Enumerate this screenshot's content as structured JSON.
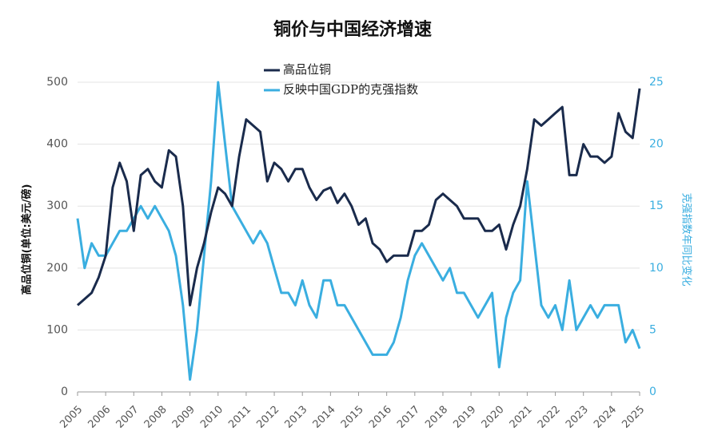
{
  "chart_data": {
    "type": "line",
    "title": "铜价与中国经济增速",
    "y_label": "高品位铜(单位:美元/磅)",
    "y2_label": "克强指数年同比变化",
    "xlim": [
      2005,
      2025
    ],
    "xticks": [
      2005,
      2006,
      2007,
      2008,
      2009,
      2010,
      2011,
      2012,
      2013,
      2014,
      2015,
      2016,
      2017,
      2018,
      2019,
      2020,
      2021,
      2022,
      2023,
      2024,
      2025
    ],
    "ylim": [
      0,
      540
    ],
    "yticks": [
      0,
      100,
      200,
      300,
      400,
      500
    ],
    "y2lim": [
      0,
      27
    ],
    "y2ticks": [
      0,
      5,
      10,
      15,
      20,
      25
    ],
    "grid": true,
    "legend": "top",
    "x": [
      2005,
      2005.25,
      2005.5,
      2005.75,
      2006,
      2006.25,
      2006.5,
      2006.75,
      2007,
      2007.25,
      2007.5,
      2007.75,
      2008,
      2008.25,
      2008.5,
      2008.75,
      2009,
      2009.25,
      2009.5,
      2009.75,
      2010,
      2010.25,
      2010.5,
      2010.75,
      2011,
      2011.25,
      2011.5,
      2011.75,
      2012,
      2012.25,
      2012.5,
      2012.75,
      2013,
      2013.25,
      2013.5,
      2013.75,
      2014,
      2014.25,
      2014.5,
      2014.75,
      2015,
      2015.25,
      2015.5,
      2015.75,
      2016,
      2016.25,
      2016.5,
      2016.75,
      2017,
      2017.25,
      2017.5,
      2017.75,
      2018,
      2018.25,
      2018.5,
      2018.75,
      2019,
      2019.25,
      2019.5,
      2019.75,
      2020,
      2020.25,
      2020.5,
      2020.75,
      2021,
      2021.25,
      2021.5,
      2021.75,
      2022,
      2022.25,
      2022.5,
      2022.75,
      2023,
      2023.25,
      2023.5,
      2023.75,
      2024,
      2024.25,
      2024.5,
      2024.75,
      2025
    ],
    "series": [
      {
        "name": "高品位铜",
        "color": "#1a2b4c",
        "values": [
          140,
          150,
          160,
          185,
          220,
          330,
          370,
          340,
          260,
          350,
          360,
          340,
          330,
          390,
          380,
          300,
          140,
          200,
          240,
          290,
          330,
          320,
          300,
          380,
          440,
          430,
          420,
          340,
          370,
          360,
          340,
          360,
          360,
          330,
          310,
          325,
          330,
          305,
          320,
          300,
          270,
          280,
          240,
          230,
          210,
          220,
          220,
          220,
          260,
          260,
          270,
          310,
          320,
          310,
          300,
          280,
          280,
          280,
          260,
          260,
          270,
          230,
          270,
          300,
          360,
          440,
          430,
          440,
          450,
          460,
          350,
          350,
          400,
          380,
          380,
          370,
          380,
          450,
          420,
          410,
          490
        ]
      },
      {
        "name": "反映中国GDP的克强指数",
        "color": "#3aaee0",
        "axis": "y2",
        "values": [
          14,
          10,
          12,
          11,
          11,
          12,
          13,
          13,
          14,
          15,
          14,
          15,
          14,
          13,
          11,
          7,
          1,
          5,
          11,
          17,
          25,
          20,
          15,
          14,
          13,
          12,
          13,
          12,
          10,
          8,
          8,
          7,
          9,
          7,
          6,
          9,
          9,
          7,
          7,
          6,
          5,
          4,
          3,
          3,
          3,
          4,
          6,
          9,
          11,
          12,
          11,
          10,
          9,
          10,
          8,
          8,
          7,
          6,
          7,
          8,
          2,
          6,
          8,
          9,
          17,
          12,
          7,
          6,
          7,
          5,
          9,
          5,
          6,
          7,
          6,
          7,
          7,
          7,
          4,
          5,
          3.5
        ]
      }
    ]
  }
}
